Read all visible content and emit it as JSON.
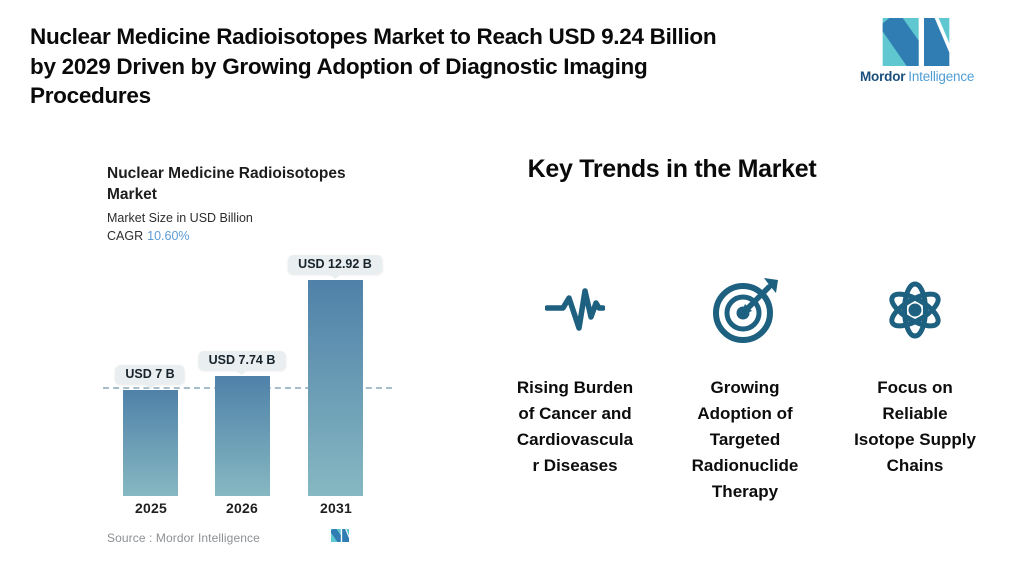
{
  "header": {
    "headline": "Nuclear Medicine Radioisotopes Market to Reach USD 9.24 Billion\nby 2029 Driven by Growing Adoption of Diagnostic Imaging\nProcedures",
    "logo": {
      "brand_bold": "Mordor",
      "brand_light": "Intelligence",
      "teal": "#5ec7cf",
      "blue": "#2f7db3"
    }
  },
  "chart": {
    "title": "Nuclear Medicine Radioisotopes\nMarket",
    "subtitle": "Market Size in USD Billion",
    "cagr_label": "CAGR",
    "cagr_value": "10.60%",
    "cagr_color": "#5b9bd5",
    "dash_color": "#a6becb",
    "badge_bg": "#e9eef0",
    "source_label": "Source :  Mordor Intelligence"
  },
  "chart_data": {
    "type": "bar",
    "title": "Nuclear Medicine Radioisotopes Market",
    "subtitle": "Market Size in USD Billion",
    "cagr": "10.60%",
    "categories": [
      "2025",
      "2026",
      "2031"
    ],
    "values": [
      7,
      7.74,
      12.92
    ],
    "value_labels": [
      "USD 7 B",
      "USD 7.74 B",
      "USD 12.92 B"
    ],
    "unit": "USD Billion",
    "baseline_dashed_at": 7,
    "grid": "off",
    "bar_gradient_top": "#4f81a9",
    "bar_gradient_bottom": "#86b8c2",
    "source": "Mordor Intelligence"
  },
  "trends": {
    "heading": "Key Trends in the Market",
    "icon_color": "#1d6080",
    "items": [
      {
        "icon": "pulse-icon",
        "label": "Rising Burden\nof Cancer and\nCardiovascula\nr Diseases"
      },
      {
        "icon": "target-dart-icon",
        "label": "Growing\nAdoption of\nTargeted\nRadionuclide\nTherapy"
      },
      {
        "icon": "atom-icon",
        "label": "Focus on\nReliable\nIsotope Supply\nChains"
      }
    ]
  }
}
